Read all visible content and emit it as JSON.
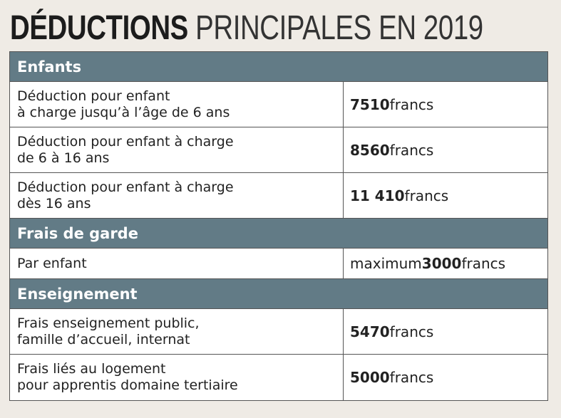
{
  "title": {
    "bold": "DÉDUCTIONS",
    "light": "PRINCIPALES EN 2019"
  },
  "sections": [
    {
      "heading": "Enfants",
      "rows": [
        {
          "label": [
            "Déduction pour enfant",
            "à charge jusqu’à l’âge de 6 ans"
          ],
          "value": {
            "amount": "7510",
            "unit": "francs"
          }
        },
        {
          "label": [
            "Déduction pour enfant à charge",
            "de 6 à 16 ans"
          ],
          "value": {
            "amount": "8560",
            "unit": "francs"
          }
        },
        {
          "label": [
            "Déduction pour enfant à charge",
            "dès 16 ans"
          ],
          "value": {
            "amount": "11 410",
            "unit": "francs"
          }
        }
      ]
    },
    {
      "heading": "Frais de garde",
      "rows": [
        {
          "label": [
            "Par enfant"
          ],
          "value": {
            "prefix": "maximum",
            "amount": "3000",
            "unit": "francs"
          }
        }
      ]
    },
    {
      "heading": "Enseignement",
      "rows": [
        {
          "label": [
            "Frais enseignement public,",
            "famille d’accueil, internat"
          ],
          "value": {
            "amount": "5470",
            "unit": "francs"
          }
        },
        {
          "label": [
            "Frais liés au logement",
            "pour apprentis domaine tertiaire"
          ],
          "value": {
            "amount": "5000",
            "unit": "francs"
          }
        }
      ]
    }
  ]
}
